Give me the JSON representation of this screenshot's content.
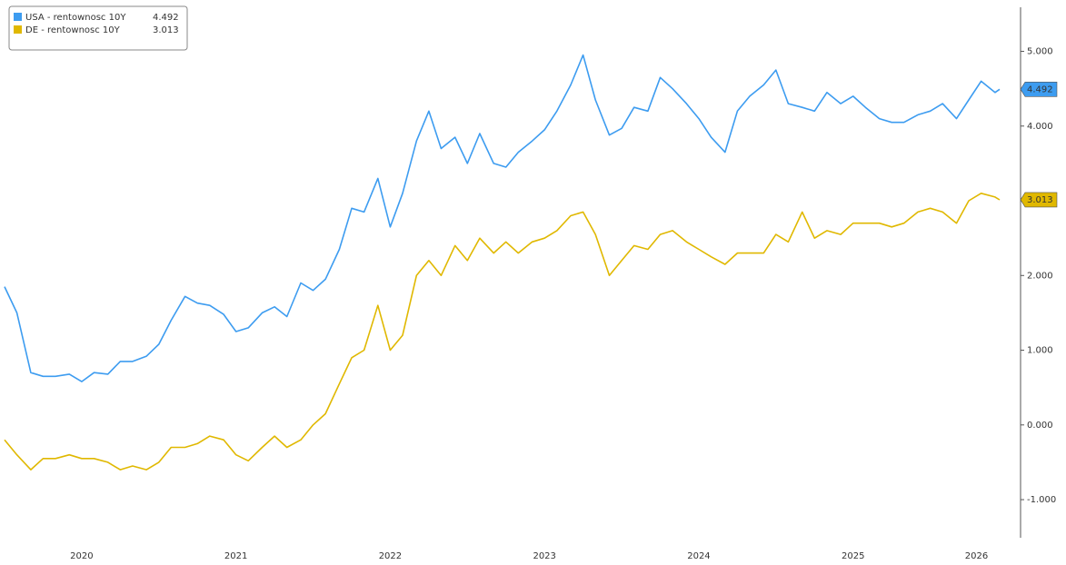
{
  "chart_data": {
    "type": "line",
    "x": [
      2020,
      2020.08,
      2020.17,
      2020.25,
      2020.33,
      2020.42,
      2020.5,
      2020.58,
      2020.67,
      2020.75,
      2020.83,
      2020.92,
      2021,
      2021.08,
      2021.17,
      2021.25,
      2021.33,
      2021.42,
      2021.5,
      2021.58,
      2021.67,
      2021.75,
      2021.83,
      2021.92,
      2022,
      2022.08,
      2022.17,
      2022.25,
      2022.33,
      2022.42,
      2022.5,
      2022.58,
      2022.67,
      2022.75,
      2022.83,
      2022.92,
      2023,
      2023.08,
      2023.17,
      2023.25,
      2023.33,
      2023.42,
      2023.5,
      2023.58,
      2023.67,
      2023.75,
      2023.83,
      2023.92,
      2024,
      2024.08,
      2024.17,
      2024.25,
      2024.33,
      2024.42,
      2024.5,
      2024.58,
      2024.67,
      2024.75,
      2024.83,
      2024.92,
      2025,
      2025.08,
      2025.17,
      2025.25,
      2025.33,
      2025.42,
      2025.5,
      2025.58,
      2025.67,
      2025.75,
      2025.83,
      2025.92,
      2026,
      2026.08,
      2026.17,
      2026.25,
      2026.33,
      2026.42,
      2026.45
    ],
    "series": [
      {
        "name": "USA - rentownosc 10Y",
        "color": "#3d9cf0",
        "values": [
          1.85,
          1.5,
          0.7,
          0.65,
          0.65,
          0.68,
          0.58,
          0.7,
          0.68,
          0.85,
          0.85,
          0.92,
          1.08,
          1.4,
          1.72,
          1.63,
          1.6,
          1.48,
          1.25,
          1.3,
          1.5,
          1.58,
          1.45,
          1.9,
          1.8,
          1.95,
          2.35,
          2.9,
          2.85,
          3.3,
          2.65,
          3.1,
          3.8,
          4.2,
          3.7,
          3.85,
          3.5,
          3.9,
          3.5,
          3.45,
          3.65,
          3.8,
          3.95,
          4.2,
          4.55,
          4.95,
          4.35,
          3.88,
          3.97,
          4.25,
          4.2,
          4.65,
          4.5,
          4.3,
          4.1,
          3.85,
          3.65,
          4.2,
          4.4,
          4.55,
          4.75,
          4.3,
          4.25,
          4.2,
          4.45,
          4.3,
          4.4,
          4.25,
          4.1,
          4.05,
          4.05,
          4.15,
          4.2,
          4.3,
          4.1,
          4.35,
          4.6,
          4.45,
          4.492
        ]
      },
      {
        "name": "DE - rentownosc 10Y",
        "color": "#e0b800",
        "values": [
          -0.2,
          -0.4,
          -0.6,
          -0.45,
          -0.45,
          -0.4,
          -0.45,
          -0.45,
          -0.5,
          -0.6,
          -0.55,
          -0.6,
          -0.5,
          -0.3,
          -0.3,
          -0.25,
          -0.15,
          -0.2,
          -0.4,
          -0.48,
          -0.3,
          -0.15,
          -0.3,
          -0.2,
          0.0,
          0.15,
          0.55,
          0.9,
          1.0,
          1.6,
          1.0,
          1.2,
          2.0,
          2.2,
          2.0,
          2.4,
          2.2,
          2.5,
          2.3,
          2.45,
          2.3,
          2.45,
          2.5,
          2.6,
          2.8,
          2.85,
          2.55,
          2.0,
          2.2,
          2.4,
          2.35,
          2.55,
          2.6,
          2.45,
          2.35,
          2.25,
          2.15,
          2.3,
          2.3,
          2.3,
          2.55,
          2.45,
          2.85,
          2.5,
          2.6,
          2.55,
          2.7,
          2.7,
          2.7,
          2.65,
          2.7,
          2.85,
          2.9,
          2.85,
          2.7,
          3.0,
          3.1,
          3.05,
          3.013
        ]
      }
    ],
    "xlim": [
      2020,
      2026.45
    ],
    "xticks": [
      {
        "value": 2020.5,
        "label": "2020"
      },
      {
        "value": 2021.5,
        "label": "2021"
      },
      {
        "value": 2022.5,
        "label": "2022"
      },
      {
        "value": 2023.5,
        "label": "2023"
      },
      {
        "value": 2024.5,
        "label": "2024"
      },
      {
        "value": 2025.5,
        "label": "2025"
      },
      {
        "value": 2026.3,
        "label": "2026"
      }
    ],
    "ylim": [
      -1.51,
      5.59
    ],
    "yticks": [
      {
        "value": -1,
        "label": "-1.000"
      },
      {
        "value": 0,
        "label": "0.000"
      },
      {
        "value": 1,
        "label": "1.000"
      },
      {
        "value": 2,
        "label": "2.000"
      },
      {
        "value": 3,
        "label": "3.000"
      },
      {
        "value": 4,
        "label": "4.000"
      },
      {
        "value": 5,
        "label": "5.000"
      }
    ],
    "grid": false,
    "legend": "upper left"
  }
}
